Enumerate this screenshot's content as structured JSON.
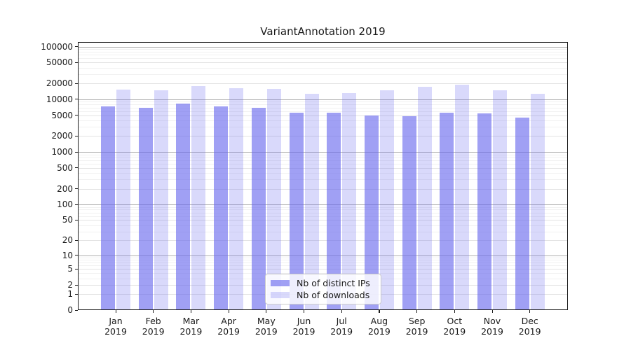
{
  "title": "VariantAnnotation 2019",
  "chart_data": {
    "type": "bar",
    "title": "VariantAnnotation 2019",
    "x_categories": [
      "Jan",
      "Feb",
      "Mar",
      "Apr",
      "May",
      "Jun",
      "Jul",
      "Aug",
      "Sep",
      "Oct",
      "Nov",
      "Dec"
    ],
    "x_year_label": "2019",
    "series": [
      {
        "name": "Nb of distinct IPs",
        "color": "rgba(102,102,238,0.62)",
        "values": [
          7400,
          6900,
          8200,
          7250,
          6800,
          5550,
          5550,
          5000,
          4750,
          5600,
          5450,
          4550
        ]
      },
      {
        "name": "Nb of downloads",
        "color": "rgba(102,102,238,0.25)",
        "values": [
          15400,
          14900,
          17600,
          16350,
          15900,
          12700,
          13000,
          14800,
          17500,
          19000,
          14800,
          12700
        ]
      }
    ],
    "y_axis": {
      "scale": "log1p",
      "ticks": [
        0,
        1,
        2,
        5,
        10,
        20,
        50,
        100,
        200,
        500,
        1000,
        2000,
        5000,
        10000,
        20000,
        50000,
        100000
      ],
      "tick_labels": [
        "0",
        "1",
        "2",
        "5",
        "10",
        "20",
        "50",
        "100",
        "200",
        "500",
        "1000",
        "2000",
        "5000",
        "10000",
        "20000",
        "50000",
        "100000"
      ],
      "ylim": [
        0,
        121000
      ]
    },
    "grid": true,
    "legend_position": "bottom-center"
  },
  "colors": {
    "bar_base": "#6666ee",
    "major_gridline": "#aeaeae",
    "labeled_gridline": "#e2e2e2",
    "minor_gridline": "#f1f1f1",
    "axis": "#1a1a1a",
    "legend_border": "#cccccc"
  }
}
